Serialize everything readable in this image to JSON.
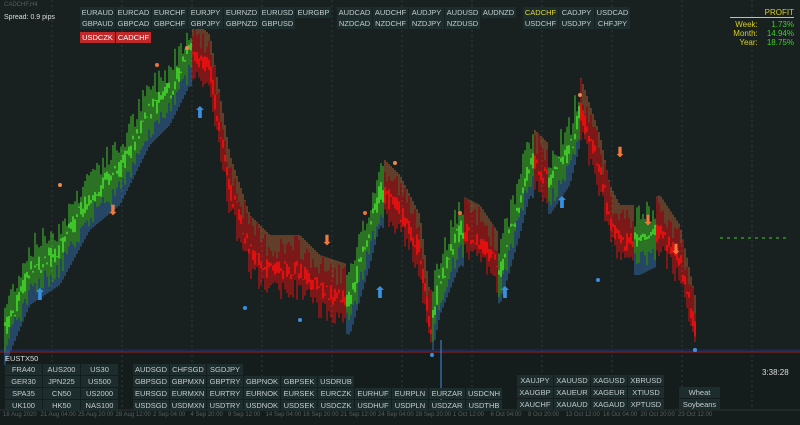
{
  "window": {
    "symbol": "CADCHF,H4",
    "spread": "Spread: 0.9 pips"
  },
  "top_buttons": {
    "row1a": [
      "EURAUD",
      "EURCAD",
      "EURCHF",
      "EURJPY",
      "EURNZD",
      "EURUSD",
      "EURGBP"
    ],
    "row2a": [
      "GBPAUD",
      "GBPCAD",
      "GBPCHF",
      "GBPJPY",
      "GBPNZD",
      "GBPUSD"
    ],
    "row1b": [
      "AUDCAD",
      "AUDCHF",
      "AUDJPY",
      "AUDUSD",
      "AUDNZD"
    ],
    "row2b": [
      "NZDCAD",
      "NZDCHF",
      "NZDJPY",
      "NZDUSD"
    ],
    "row1c": [
      "CADCHF",
      "CADJPY",
      "USDCAD"
    ],
    "row2c": [
      "USDCHF",
      "USDJPY",
      "CHFJPY"
    ],
    "active": [
      "USDCZK",
      "CADCHF"
    ]
  },
  "profit": {
    "title": "PROFIT",
    "rows": [
      {
        "label": "Week:",
        "value": "1.73%"
      },
      {
        "label": "Month:",
        "value": "14.94%"
      },
      {
        "label": "Year:",
        "value": "18.75%"
      }
    ]
  },
  "bottom": {
    "index_label": "EUSTX50",
    "indices": [
      [
        "FRA40",
        "AUS200",
        "US30"
      ],
      [
        "GER30",
        "JPN225",
        "US500"
      ],
      [
        "SPA35",
        "CN50",
        "US2000"
      ],
      [
        "UK100",
        "HK50",
        "NAS100"
      ]
    ],
    "exotics": [
      [
        "AUDSGD",
        "CHFSGD",
        "SGDJPY"
      ],
      [
        "GBPSGD",
        "GBPMXN",
        "GBPTRY",
        "GBPNOK",
        "GBPSEK",
        "USDRUB"
      ],
      [
        "EURSGD",
        "EURMXN",
        "EURTRY",
        "EURNOK",
        "EURSEK",
        "EURCZK",
        "EURHUF",
        "EURPLN",
        "EURZAR",
        "USDCNH"
      ],
      [
        "USDSGD",
        "USDMXN",
        "USDTRY",
        "USDNOK",
        "USDSEK",
        "USDCZK",
        "USDHUF",
        "USDPLN",
        "USDZAR",
        "USDTHB"
      ]
    ],
    "metals": [
      [
        "XAUJPY",
        "XAUUSD",
        "XAGUSD",
        "XBRUSD"
      ],
      [
        "XAUGBP",
        "XAUEUR",
        "XAGEUR",
        "XTIUSD"
      ],
      [
        "XAUCHF",
        "XAUAUD",
        "XAGAUD",
        "XPTUSD"
      ]
    ],
    "commodities": [
      "Wheat",
      "Soybeans"
    ],
    "timer": "3:38:28"
  },
  "x_axis": [
    "18 Aug 2020",
    "21 Aug 04:00",
    "25 Aug 20:00",
    "28 Aug 12:00",
    "2 Sep 04:00",
    "4 Sep 20:00",
    "9 Sep 12:00",
    "14 Sep 04:00",
    "16 Sep 20:00",
    "21 Sep 12:00",
    "24 Sep 04:00",
    "28 Sep 20:00",
    "1 Oct 12:00",
    "6 Oct 04:00",
    "8 Oct 20:00",
    "13 Oct 12:00",
    "16 Oct 04:00",
    "20 Oct 20:00",
    "23 Oct 12:00"
  ],
  "colors": {
    "bull": "#3fc42a",
    "bear": "#e01010",
    "band_upper": "#e8743a",
    "band_lower": "#3a80d0",
    "arrow_up": "#3a90e0",
    "arrow_down": "#f07a40"
  }
}
